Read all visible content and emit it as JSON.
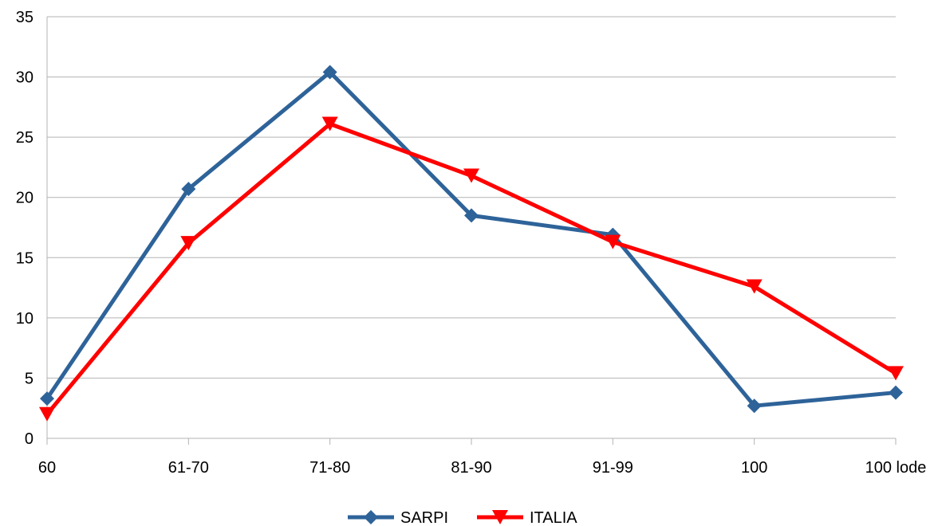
{
  "chart_data": {
    "type": "line",
    "categories": [
      "60",
      "61-70",
      "71-80",
      "81-90",
      "91-99",
      "100",
      "100 lode"
    ],
    "ylim": [
      0,
      35
    ],
    "yticks": [
      0,
      5,
      10,
      15,
      20,
      25,
      30,
      35
    ],
    "grid": true,
    "legend_position": "bottom",
    "series": [
      {
        "name": "SARPI",
        "values": [
          3.3,
          20.7,
          30.4,
          18.5,
          16.9,
          2.7,
          3.8
        ],
        "color": "#2e6399",
        "marker": "diamond"
      },
      {
        "name": "ITALIA",
        "values": [
          2.0,
          16.2,
          26.1,
          21.8,
          16.3,
          12.6,
          5.4
        ],
        "color": "#ff0000",
        "marker": "triangle-down"
      }
    ]
  }
}
